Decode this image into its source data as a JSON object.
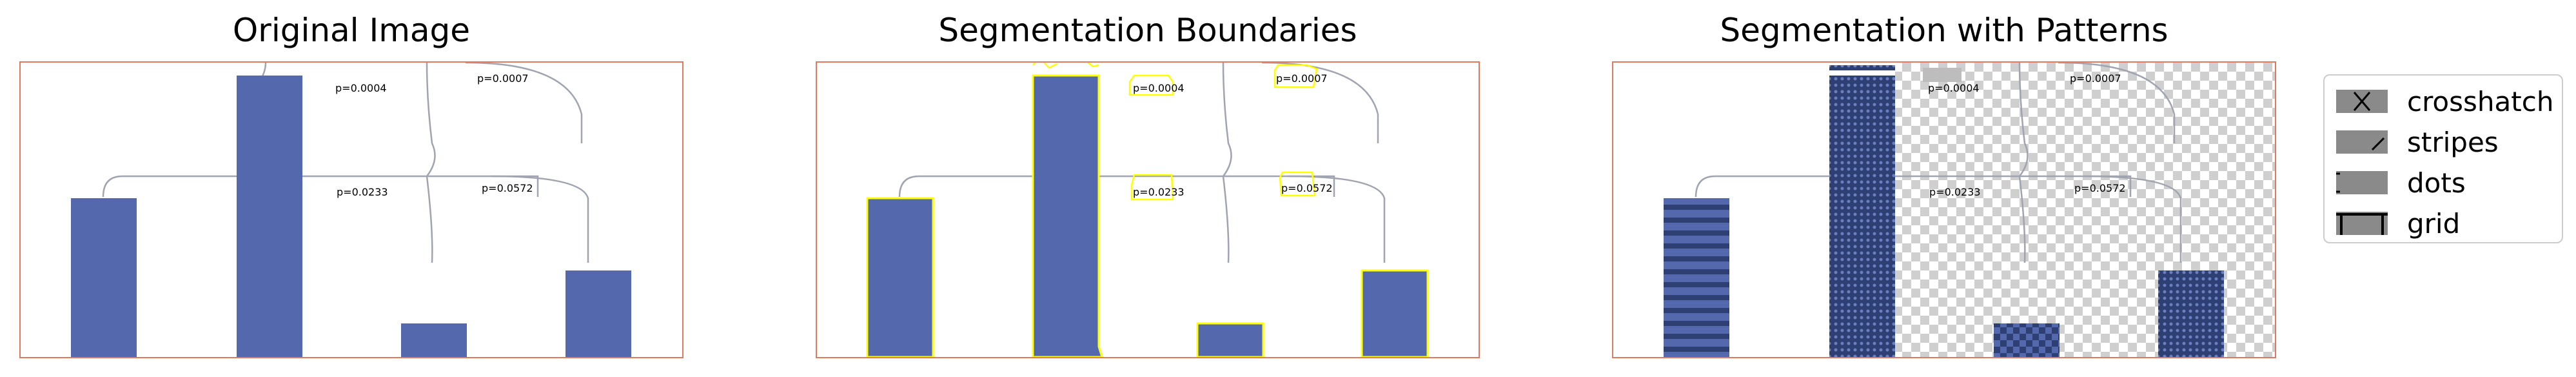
{
  "titles": {
    "original": "Original Image",
    "boundaries": "Segmentation Boundaries",
    "patterns": "Segmentation with Patterns"
  },
  "p_values": [
    "p=0.0004",
    "p=0.0007",
    "p=0.0233",
    "p=0.0572"
  ],
  "legend": {
    "items": [
      {
        "label": "crosshatch",
        "icon": "crosshatch-icon"
      },
      {
        "label": "stripes",
        "icon": "stripes-icon"
      },
      {
        "label": "dots",
        "icon": "dots-icon"
      },
      {
        "label": "grid",
        "icon": "grid-icon"
      }
    ]
  },
  "colors": {
    "bar": "#5469ad",
    "frame": "#e07a5f",
    "bracket": "#a0a4b0",
    "boundary": "#ffff00",
    "pattern_dark": "#2e3f73"
  }
}
